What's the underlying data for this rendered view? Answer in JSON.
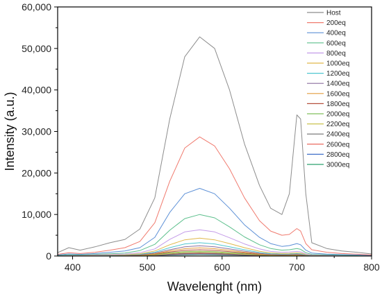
{
  "chart_data": {
    "type": "line",
    "xlabel": "Wavelenght (nm)",
    "ylabel": "Intensity (a.u.)",
    "xlim": [
      380,
      800
    ],
    "ylim": [
      0,
      60000
    ],
    "x_ticks": [
      400,
      500,
      600,
      700,
      800
    ],
    "x_tick_labels": [
      "400",
      "500",
      "600",
      "700",
      "800"
    ],
    "y_ticks": [
      0,
      10000,
      20000,
      30000,
      40000,
      50000,
      60000
    ],
    "y_tick_labels": [
      "0",
      "10,000",
      "20,000",
      "30,000",
      "40,000",
      "50,000",
      "60,000"
    ],
    "grid": false,
    "legend_position": "top-right",
    "x": [
      380,
      395,
      410,
      430,
      450,
      470,
      490,
      510,
      530,
      550,
      570,
      590,
      610,
      630,
      650,
      665,
      680,
      690,
      700,
      705,
      712,
      720,
      740,
      760,
      780,
      800
    ],
    "series": [
      {
        "name": "Host",
        "color": "#8c8c8c",
        "values": [
          800,
          2000,
          1400,
          2200,
          3200,
          4000,
          6500,
          14000,
          33000,
          48000,
          52800,
          50000,
          40000,
          27000,
          17000,
          11500,
          10000,
          15000,
          34000,
          33000,
          15000,
          3200,
          1800,
          1200,
          900,
          500
        ]
      },
      {
        "name": "200eq",
        "color": "#f07a6e",
        "values": [
          400,
          800,
          600,
          900,
          1400,
          2000,
          3500,
          8000,
          18000,
          26000,
          28700,
          26500,
          21000,
          14000,
          8500,
          6000,
          5000,
          5200,
          6600,
          6000,
          3000,
          1500,
          900,
          600,
          450,
          250
        ]
      },
      {
        "name": "400eq",
        "color": "#5b8fd6",
        "values": [
          250,
          500,
          400,
          600,
          900,
          1200,
          2000,
          4500,
          10500,
          15000,
          16300,
          15000,
          11500,
          7500,
          4500,
          3000,
          2300,
          2500,
          3000,
          2700,
          1400,
          700,
          450,
          350,
          250,
          150
        ]
      },
      {
        "name": "600eq",
        "color": "#5cbf8c",
        "values": [
          150,
          300,
          250,
          400,
          550,
          700,
          1300,
          2800,
          6200,
          9000,
          10000,
          9200,
          7000,
          4600,
          2700,
          1800,
          1400,
          1500,
          1800,
          1600,
          800,
          400,
          300,
          200,
          150,
          100
        ]
      },
      {
        "name": "800eq",
        "color": "#c49be8",
        "values": [
          100,
          200,
          180,
          250,
          350,
          450,
          800,
          1700,
          4000,
          5800,
          6300,
          5800,
          4400,
          2900,
          1700,
          1100,
          900,
          950,
          1100,
          1000,
          500,
          250,
          180,
          130,
          100,
          60
        ]
      },
      {
        "name": "1000eq",
        "color": "#e0b84a",
        "values": [
          80,
          150,
          120,
          180,
          250,
          320,
          550,
          1200,
          2700,
          3900,
          4300,
          3900,
          3000,
          2000,
          1150,
          750,
          600,
          650,
          750,
          680,
          350,
          180,
          130,
          90,
          70,
          40
        ]
      },
      {
        "name": "1200eq",
        "color": "#4fc6d0",
        "values": [
          60,
          110,
          90,
          140,
          190,
          250,
          420,
          900,
          2000,
          2900,
          3200,
          2900,
          2200,
          1500,
          850,
          550,
          450,
          480,
          560,
          500,
          260,
          130,
          100,
          70,
          50,
          30
        ]
      },
      {
        "name": "1400eq",
        "color": "#8a6f9e",
        "values": [
          50,
          90,
          75,
          110,
          150,
          200,
          330,
          700,
          1500,
          2200,
          2450,
          2200,
          1700,
          1150,
          650,
          420,
          350,
          370,
          430,
          390,
          200,
          100,
          80,
          55,
          40,
          25
        ]
      },
      {
        "name": "1600eq",
        "color": "#e39b3c",
        "values": [
          40,
          70,
          60,
          90,
          120,
          160,
          260,
          550,
          1200,
          1750,
          1950,
          1750,
          1350,
          900,
          520,
          330,
          280,
          300,
          340,
          310,
          160,
          80,
          60,
          45,
          30,
          20
        ]
      },
      {
        "name": "1800eq",
        "color": "#b5503c",
        "values": [
          30,
          55,
          45,
          70,
          95,
          125,
          200,
          430,
          950,
          1350,
          1500,
          1350,
          1050,
          700,
          400,
          260,
          220,
          230,
          260,
          240,
          125,
          60,
          45,
          35,
          25,
          15
        ]
      },
      {
        "name": "2000eq",
        "color": "#7fbf5a",
        "values": [
          25,
          45,
          38,
          55,
          75,
          100,
          160,
          340,
          750,
          1050,
          1150,
          1050,
          800,
          540,
          310,
          200,
          170,
          180,
          200,
          185,
          95,
          50,
          35,
          27,
          20,
          12
        ]
      },
      {
        "name": "2200eq",
        "color": "#c9c24e",
        "values": [
          20,
          35,
          30,
          45,
          60,
          80,
          130,
          270,
          600,
          850,
          930,
          850,
          650,
          430,
          250,
          160,
          135,
          145,
          160,
          150,
          75,
          40,
          28,
          22,
          16,
          10
        ]
      },
      {
        "name": "2400eq",
        "color": "#6e6e6e",
        "values": [
          15,
          28,
          24,
          35,
          48,
          63,
          100,
          210,
          470,
          660,
          720,
          660,
          500,
          335,
          195,
          125,
          105,
          112,
          125,
          115,
          58,
          30,
          22,
          17,
          12,
          8
        ]
      },
      {
        "name": "2600eq",
        "color": "#e8574a",
        "values": [
          12,
          22,
          19,
          28,
          38,
          50,
          80,
          170,
          370,
          520,
          570,
          520,
          400,
          265,
          155,
          100,
          83,
          89,
          100,
          92,
          46,
          24,
          18,
          13,
          10,
          6
        ]
      },
      {
        "name": "2800eq",
        "color": "#3f6fc9",
        "values": [
          10,
          18,
          15,
          22,
          30,
          40,
          63,
          135,
          290,
          410,
          450,
          410,
          315,
          210,
          122,
          79,
          66,
          70,
          79,
          73,
          37,
          19,
          14,
          10,
          8,
          5
        ]
      },
      {
        "name": "3000eq",
        "color": "#2aa06e",
        "values": [
          8,
          14,
          12,
          18,
          24,
          32,
          50,
          105,
          230,
          325,
          355,
          325,
          250,
          165,
          96,
          62,
          52,
          55,
          62,
          57,
          29,
          15,
          11,
          8,
          6,
          4
        ]
      }
    ]
  }
}
